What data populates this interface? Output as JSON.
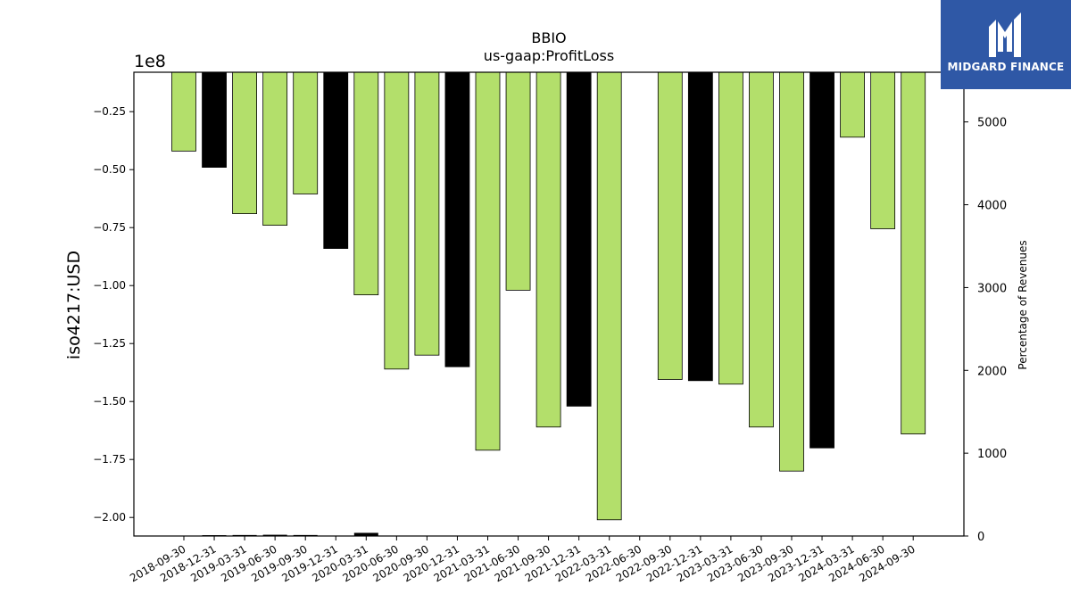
{
  "chart_data": {
    "type": "bar",
    "title": "BBIO",
    "subtitle": "us-gaap:ProfitLoss",
    "ylabel": "iso4217:USD",
    "y_offset_label": "1e8",
    "y2label": "Percentage of Revenues",
    "ylim": [
      -208000000,
      -8000000
    ],
    "y2lim": [
      0,
      5600
    ],
    "yticks": [
      -25000000,
      -50000000,
      -75000000,
      -100000000,
      -125000000,
      -150000000,
      -175000000,
      -200000000
    ],
    "ytick_labels": [
      "−0.25",
      "−0.50",
      "−0.75",
      "−1.00",
      "−1.25",
      "−1.50",
      "−1.75",
      "−2.00"
    ],
    "y2ticks": [
      0,
      1000,
      2000,
      3000,
      4000,
      5000
    ],
    "y2tick_labels": [
      "0",
      "1000",
      "2000",
      "3000",
      "4000",
      "5000"
    ],
    "categories": [
      "2018-09-30",
      "2018-12-31",
      "2019-03-31",
      "2019-06-30",
      "2019-09-30",
      "2019-12-31",
      "2020-03-31",
      "2020-06-30",
      "2020-09-30",
      "2020-12-31",
      "2021-03-31",
      "2021-06-30",
      "2021-09-30",
      "2021-12-31",
      "2022-03-31",
      "2022-06-30",
      "2022-09-30",
      "2022-12-31",
      "2023-03-31",
      "2023-06-30",
      "2023-09-30",
      "2023-12-31",
      "2024-03-31",
      "2024-06-30",
      "2024-09-30"
    ],
    "series": [
      {
        "values": [
          -42000000,
          -49000000,
          -69000000,
          -74000000,
          -60500000,
          -84000000,
          -104000000,
          -136000000,
          -130000000,
          -135000000,
          -171000000,
          -102000000,
          -161000000,
          -152000000,
          -201000000,
          null,
          -140500000,
          -141000000,
          -142500000,
          -161000000,
          -180000000,
          -170000000,
          -36000000,
          -75500000,
          -164000000
        ],
        "colors": [
          "#b3df6b",
          "#000000",
          "#b3df6b",
          "#b3df6b",
          "#b3df6b",
          "#000000",
          "#b3df6b",
          "#b3df6b",
          "#b3df6b",
          "#000000",
          "#b3df6b",
          "#b3df6b",
          "#b3df6b",
          "#000000",
          "#b3df6b",
          "#b3df6b",
          "#b3df6b",
          "#000000",
          "#b3df6b",
          "#b3df6b",
          "#b3df6b",
          "#000000",
          "#b3df6b",
          "#b3df6b",
          "#b3df6b"
        ]
      },
      {
        "axis": "right",
        "values": [
          5,
          10,
          12,
          15,
          12,
          null,
          38,
          null,
          null,
          null,
          null,
          null,
          null,
          null,
          null,
          null,
          null,
          null,
          null,
          null,
          null,
          null,
          null,
          null,
          null
        ],
        "color": "#000000"
      }
    ],
    "grid": false,
    "legend": "none"
  },
  "brand": {
    "name": "MIDGARD FINANCE",
    "icon": "midgard-logo-icon",
    "color": "#2f58a6"
  }
}
